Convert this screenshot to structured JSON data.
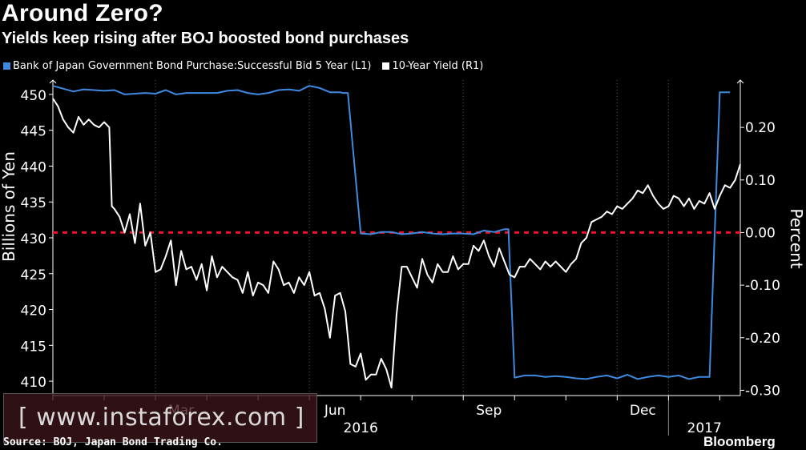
{
  "chart_data": {
    "type": "line",
    "title": "Around Zero?",
    "subtitle": "Yields keep rising after BOJ boosted bond purchases",
    "ylabel_left": "Billions of Yen",
    "ylabel_right": "Percent",
    "ylim_left": [
      408,
      452
    ],
    "ylim_right": [
      -0.31,
      0.29
    ],
    "yticks_left": [
      "450",
      "445",
      "440",
      "435",
      "430",
      "425",
      "420",
      "415",
      "410"
    ],
    "yticks_right": [
      "0.20",
      "0.10",
      "0.00",
      "-0.10",
      "-0.20",
      "-0.30"
    ],
    "x_range_months": [
      0,
      13.4
    ],
    "x_month_labels": [
      "Mar",
      "Jun",
      "Sep",
      "Dec"
    ],
    "x_year_labels": [
      "2016",
      "2017"
    ],
    "reference_line": {
      "axis": "right",
      "value": 0.0,
      "color": "#e8162b",
      "style": "dotted"
    },
    "series": [
      {
        "name": "Bank of Japan Government Bond Purchase:Successful Bid 5 Year  (L1)",
        "axis": "left",
        "color": "#3d8ae0",
        "x": [
          0,
          0.2,
          0.4,
          0.6,
          0.8,
          1.0,
          1.2,
          1.4,
          1.6,
          1.8,
          2.0,
          2.2,
          2.4,
          2.6,
          2.8,
          3.0,
          3.2,
          3.4,
          3.6,
          3.8,
          4.0,
          4.2,
          4.4,
          4.6,
          4.8,
          5.0,
          5.2,
          5.4,
          5.6,
          5.65,
          5.75,
          6.0,
          6.2,
          6.4,
          6.6,
          6.8,
          7.0,
          7.2,
          7.4,
          7.6,
          7.8,
          8.0,
          8.2,
          8.4,
          8.6,
          8.8,
          8.88,
          9.0,
          9.2,
          9.4,
          9.6,
          9.8,
          10.0,
          10.2,
          10.4,
          10.6,
          10.8,
          11.0,
          11.2,
          11.4,
          11.6,
          11.8,
          12.0,
          12.2,
          12.4,
          12.6,
          12.8,
          13.0,
          13.2
        ],
        "values": [
          451.2,
          450.8,
          450.4,
          450.7,
          450.6,
          450.5,
          450.6,
          450.0,
          450.1,
          450.2,
          450.1,
          450.6,
          450.0,
          450.2,
          450.2,
          450.2,
          450.2,
          450.5,
          450.6,
          450.2,
          450.0,
          450.2,
          450.6,
          450.7,
          450.5,
          451.2,
          450.9,
          450.3,
          450.3,
          450.2,
          450.2,
          430.6,
          430.5,
          430.8,
          430.8,
          430.5,
          430.6,
          430.8,
          430.6,
          430.5,
          430.6,
          430.6,
          430.5,
          431.0,
          430.8,
          431.2,
          431.2,
          410.5,
          410.8,
          410.8,
          410.6,
          410.7,
          410.6,
          410.4,
          410.3,
          410.6,
          410.8,
          410.4,
          410.9,
          410.3,
          410.6,
          410.8,
          410.6,
          410.8,
          410.3,
          410.6,
          410.6,
          450.3,
          450.3
        ],
        "x_note": "final segment: 13.0 -> 13.2 is the spike to 450.3"
      },
      {
        "name": "10-Year Yield (R1)",
        "axis": "right",
        "color": "#ffffff",
        "x": [
          0,
          0.1,
          0.2,
          0.3,
          0.4,
          0.5,
          0.6,
          0.7,
          0.8,
          0.9,
          1.0,
          1.1,
          1.15,
          1.2,
          1.3,
          1.4,
          1.5,
          1.6,
          1.7,
          1.8,
          1.9,
          2.0,
          2.1,
          2.2,
          2.3,
          2.4,
          2.5,
          2.6,
          2.7,
          2.8,
          2.9,
          3.0,
          3.1,
          3.2,
          3.3,
          3.4,
          3.5,
          3.6,
          3.7,
          3.8,
          3.9,
          4.0,
          4.1,
          4.2,
          4.3,
          4.4,
          4.5,
          4.6,
          4.7,
          4.8,
          4.9,
          5.0,
          5.1,
          5.2,
          5.3,
          5.4,
          5.5,
          5.6,
          5.7,
          5.8,
          5.9,
          6.0,
          6.1,
          6.2,
          6.3,
          6.4,
          6.5,
          6.6,
          6.7,
          6.8,
          6.9,
          7.0,
          7.1,
          7.2,
          7.3,
          7.4,
          7.5,
          7.6,
          7.7,
          7.8,
          7.9,
          8.0,
          8.1,
          8.2,
          8.3,
          8.4,
          8.5,
          8.6,
          8.7,
          8.8,
          8.9,
          9.0,
          9.1,
          9.2,
          9.3,
          9.4,
          9.5,
          9.6,
          9.7,
          9.8,
          9.9,
          10.0,
          10.1,
          10.2,
          10.3,
          10.4,
          10.5,
          10.6,
          10.7,
          10.8,
          10.9,
          11.0,
          11.1,
          11.2,
          11.3,
          11.4,
          11.5,
          11.6,
          11.7,
          11.8,
          11.9,
          12.0,
          12.1,
          12.2,
          12.3,
          12.4,
          12.5,
          12.6,
          12.7,
          12.8,
          12.9,
          13.0,
          13.1,
          13.2,
          13.3,
          13.4
        ],
        "values": [
          0.255,
          0.24,
          0.215,
          0.2,
          0.19,
          0.22,
          0.205,
          0.215,
          0.205,
          0.2,
          0.21,
          0.2,
          0.05,
          0.045,
          0.03,
          0.0,
          0.035,
          -0.02,
          0.055,
          -0.025,
          0.0,
          -0.075,
          -0.07,
          -0.045,
          -0.015,
          -0.1,
          -0.035,
          -0.07,
          -0.065,
          -0.09,
          -0.06,
          -0.11,
          -0.045,
          -0.085,
          -0.065,
          -0.075,
          -0.085,
          -0.09,
          -0.115,
          -0.075,
          -0.12,
          -0.095,
          -0.1,
          -0.115,
          -0.055,
          -0.07,
          -0.1,
          -0.095,
          -0.115,
          -0.085,
          -0.1,
          -0.075,
          -0.12,
          -0.115,
          -0.145,
          -0.2,
          -0.12,
          -0.115,
          -0.15,
          -0.25,
          -0.255,
          -0.23,
          -0.28,
          -0.27,
          -0.27,
          -0.24,
          -0.26,
          -0.295,
          -0.155,
          -0.065,
          -0.065,
          -0.085,
          -0.105,
          -0.05,
          -0.08,
          -0.095,
          -0.06,
          -0.075,
          -0.075,
          -0.045,
          -0.07,
          -0.06,
          -0.06,
          -0.025,
          -0.035,
          -0.015,
          -0.045,
          -0.065,
          -0.03,
          -0.055,
          -0.08,
          -0.085,
          -0.065,
          -0.065,
          -0.05,
          -0.06,
          -0.07,
          -0.055,
          -0.065,
          -0.055,
          -0.065,
          -0.075,
          -0.06,
          -0.05,
          -0.02,
          -0.01,
          0.02,
          0.025,
          0.03,
          0.04,
          0.035,
          0.05,
          0.045,
          0.055,
          0.065,
          0.08,
          0.075,
          0.09,
          0.07,
          0.055,
          0.045,
          0.05,
          0.07,
          0.065,
          0.05,
          0.065,
          0.045,
          0.06,
          0.055,
          0.075,
          0.045,
          0.07,
          0.09,
          0.085,
          0.1,
          0.13
        ]
      }
    ]
  },
  "legend": {
    "series1_label": "Bank of Japan Government Bond Purchase:Successful Bid 5 Year  (L1)",
    "series2_label": "10-Year Yield (R1)"
  },
  "source": "Source: BOJ, Japan Bond Trading Co.",
  "brand": "Bloomberg",
  "watermark": "[ www.instaforex.com ]",
  "colors": {
    "blue": "#3d8ae0",
    "white": "#ffffff",
    "red": "#e8162b",
    "grid": "#3a3a3a"
  }
}
